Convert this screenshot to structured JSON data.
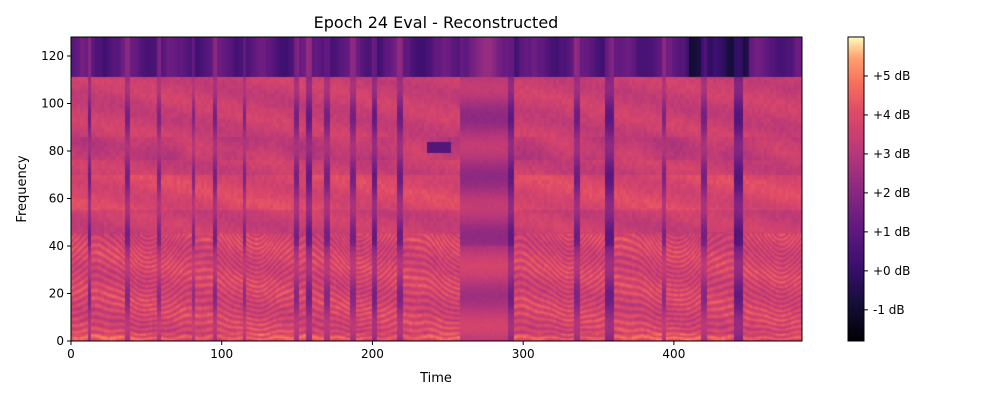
{
  "chart_data": {
    "type": "heatmap",
    "title": "Epoch 24 Eval - Reconstructed",
    "xlabel": "Time",
    "ylabel": "Frequency",
    "xlim": [
      0,
      485
    ],
    "ylim": [
      0,
      128
    ],
    "x_ticks": [
      0,
      100,
      200,
      300,
      400
    ],
    "y_ticks": [
      0,
      20,
      40,
      60,
      80,
      100,
      120
    ],
    "colormap": "magma",
    "colorbar": {
      "range": [
        -1.8,
        6.0
      ],
      "ticks": [
        -1,
        0,
        1,
        2,
        3,
        4,
        5
      ],
      "tick_labels": [
        "-1 dB",
        "+0 dB",
        "+1 dB",
        "+2 dB",
        "+3 dB",
        "+4 dB",
        "+5 dB"
      ]
    },
    "band_cutoff_bin": 111,
    "silence_regions": [
      {
        "start": 11,
        "end": 13,
        "level": 1.8
      },
      {
        "start": 36,
        "end": 39,
        "level": 2.0
      },
      {
        "start": 57,
        "end": 60,
        "level": 2.2
      },
      {
        "start": 80,
        "end": 82,
        "level": 2.3
      },
      {
        "start": 94,
        "end": 97,
        "level": 2.0
      },
      {
        "start": 114,
        "end": 116,
        "level": 2.2
      },
      {
        "start": 148,
        "end": 151,
        "level": 2.0
      },
      {
        "start": 156,
        "end": 160,
        "level": 1.6
      },
      {
        "start": 168,
        "end": 172,
        "level": 2.0
      },
      {
        "start": 185,
        "end": 189,
        "level": 2.0
      },
      {
        "start": 200,
        "end": 203,
        "level": 1.6
      },
      {
        "start": 216,
        "end": 220,
        "level": 1.8
      },
      {
        "start": 258,
        "end": 290,
        "level": 2.6
      },
      {
        "start": 290,
        "end": 294,
        "level": 1.5
      },
      {
        "start": 334,
        "end": 338,
        "level": 1.8
      },
      {
        "start": 354,
        "end": 360,
        "level": 1.4
      },
      {
        "start": 392,
        "end": 395,
        "level": 2.2
      },
      {
        "start": 418,
        "end": 422,
        "level": 2.0
      },
      {
        "start": 440,
        "end": 446,
        "level": 1.2
      }
    ]
  }
}
